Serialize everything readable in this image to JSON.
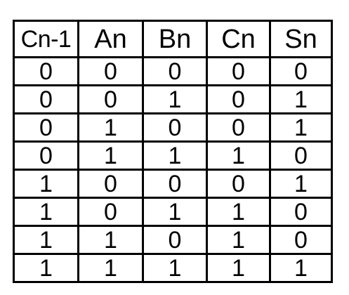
{
  "table": {
    "headers": [
      "Cn-1",
      "An",
      "Bn",
      "Cn",
      "Sn"
    ],
    "rows": [
      [
        "0",
        "0",
        "0",
        "0",
        "0"
      ],
      [
        "0",
        "0",
        "1",
        "0",
        "1"
      ],
      [
        "0",
        "1",
        "0",
        "0",
        "1"
      ],
      [
        "0",
        "1",
        "1",
        "1",
        "0"
      ],
      [
        "1",
        "0",
        "0",
        "0",
        "1"
      ],
      [
        "1",
        "0",
        "1",
        "1",
        "0"
      ],
      [
        "1",
        "1",
        "0",
        "1",
        "0"
      ],
      [
        "1",
        "1",
        "1",
        "1",
        "1"
      ]
    ]
  },
  "colors": {
    "border": "#000000",
    "text": "#000000",
    "background": "#ffffff"
  }
}
